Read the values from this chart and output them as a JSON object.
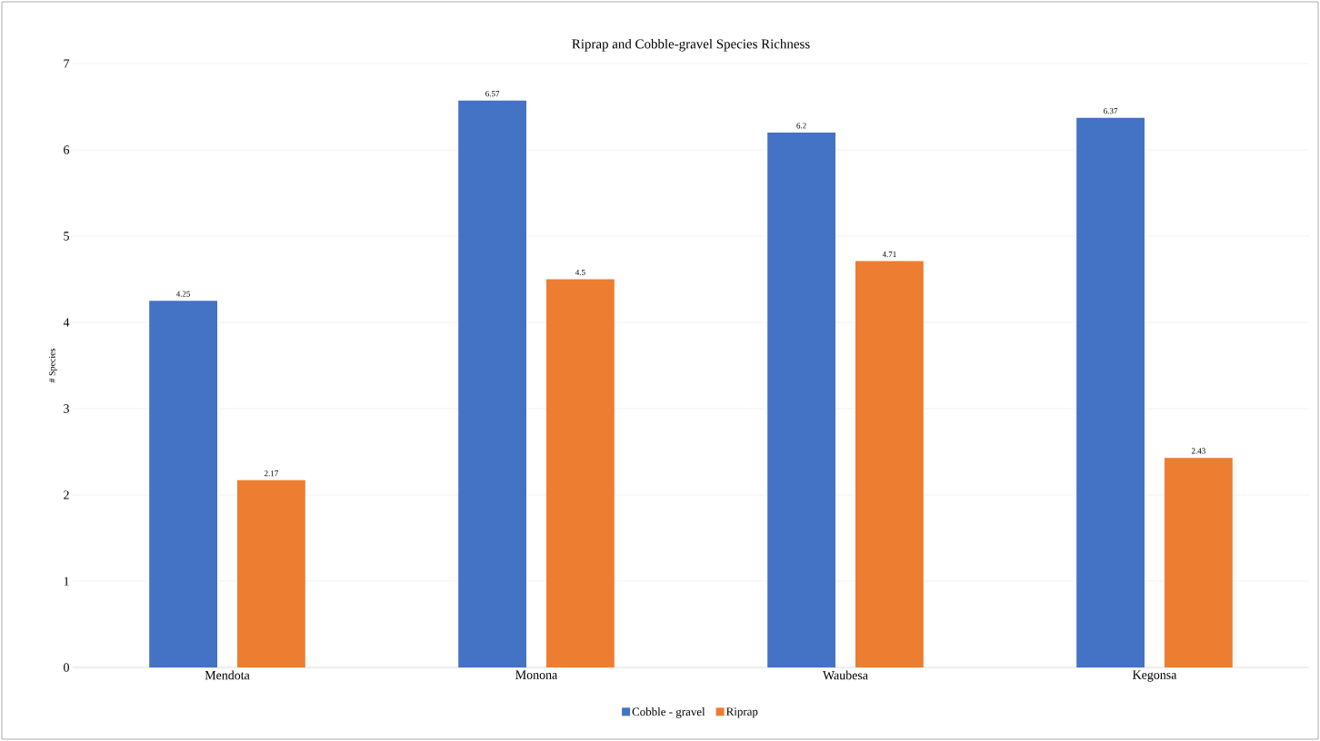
{
  "chart_data": {
    "type": "bar",
    "title": "Riprap and Cobble-gravel Species Richness",
    "ylabel": "# Species",
    "categories": [
      "Mendota",
      "Monona",
      "Waubesa",
      "Kegonsa"
    ],
    "series": [
      {
        "name": "Cobble - gravel",
        "color": "#4472c4",
        "values": [
          4.25,
          6.57,
          6.2,
          6.37
        ]
      },
      {
        "name": "Riprap",
        "color": "#ed7d31",
        "values": [
          2.17,
          4.5,
          4.71,
          2.43
        ]
      }
    ],
    "ylim": [
      0,
      7
    ],
    "yticks": [
      0,
      1,
      2,
      3,
      4,
      5,
      6,
      7
    ],
    "grid": "y",
    "legend": "bottom",
    "data_labels": true
  }
}
